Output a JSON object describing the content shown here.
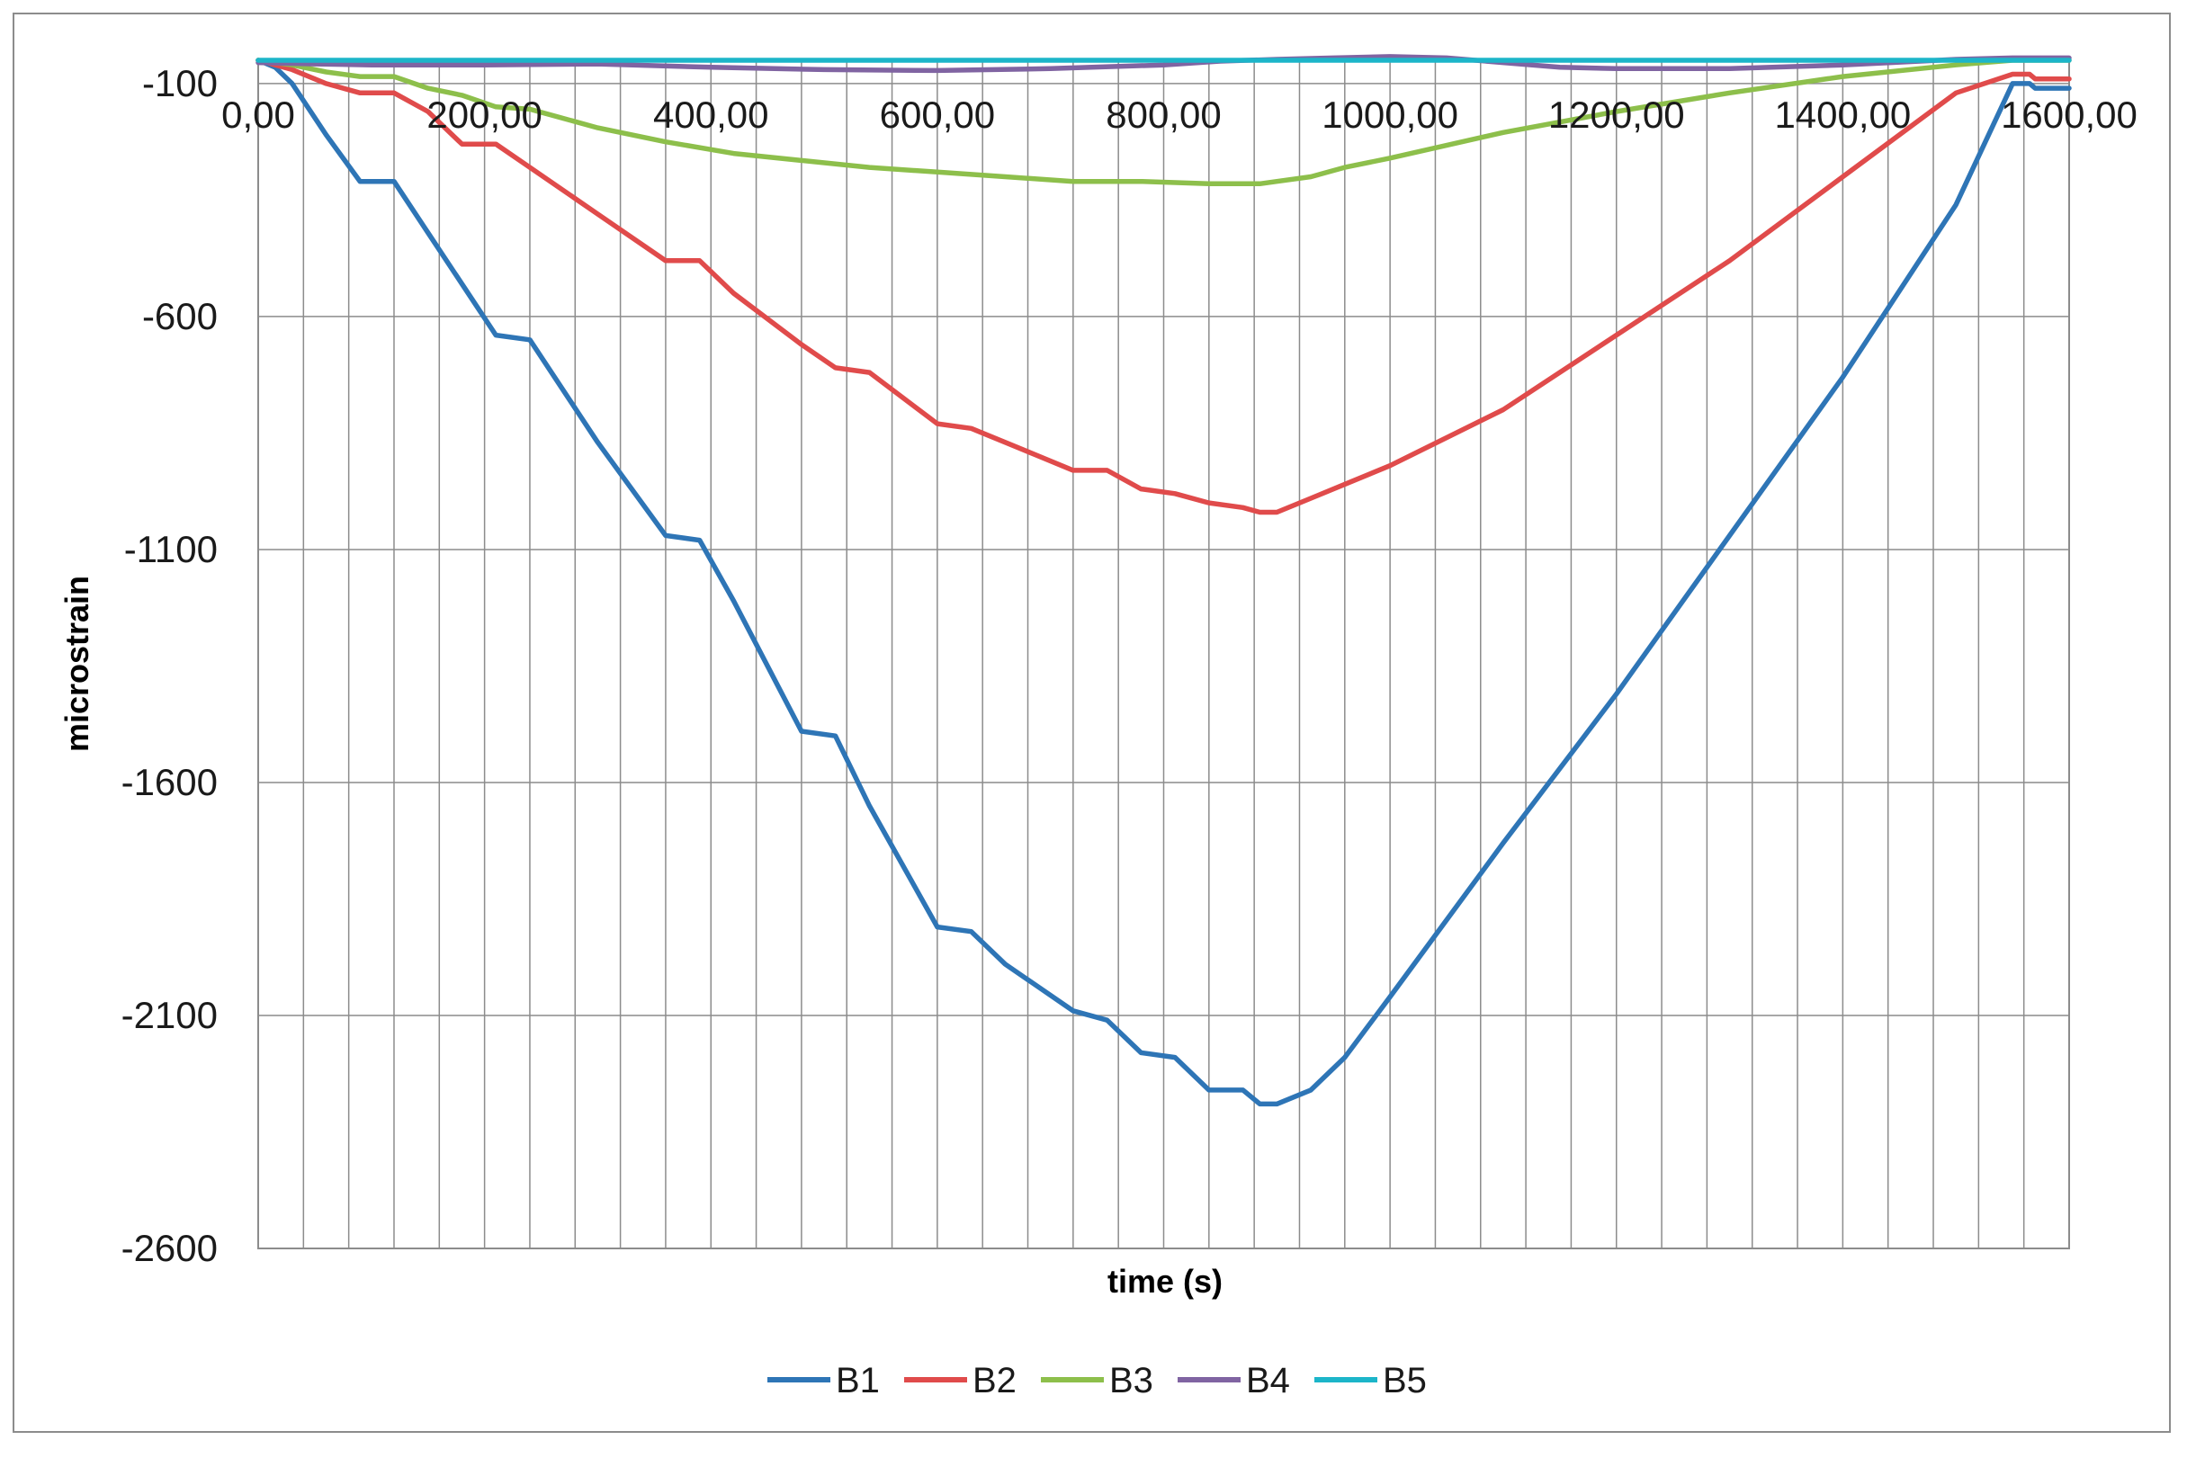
{
  "chart_data": {
    "type": "line",
    "title": "",
    "xlabel": "time (s)",
    "ylabel": "microstrain",
    "xlim": [
      0,
      1600
    ],
    "ylim": [
      -2600,
      -50
    ],
    "x_ticks": [
      0,
      200,
      400,
      600,
      800,
      1000,
      1200,
      1400,
      1600
    ],
    "x_tick_labels": [
      "0,00",
      "200,00",
      "400,00",
      "600,00",
      "800,00",
      "1000,00",
      "1200,00",
      "1400,00",
      "1600,00"
    ],
    "y_ticks": [
      -100,
      -600,
      -1100,
      -1600,
      -2100,
      -2600
    ],
    "y_tick_labels": [
      "-100",
      "-600",
      "-1100",
      "-1600",
      "-2100",
      "-2600"
    ],
    "minor_x_grid_step": 40,
    "grid": true,
    "legend_position": "bottom",
    "series": [
      {
        "name": "B1",
        "color": "#2e75b6",
        "x": [
          0,
          15,
          30,
          60,
          90,
          120,
          150,
          180,
          210,
          240,
          300,
          360,
          390,
          420,
          480,
          510,
          540,
          600,
          630,
          660,
          720,
          750,
          780,
          810,
          840,
          870,
          885,
          900,
          930,
          960,
          1000,
          1100,
          1200,
          1300,
          1400,
          1500,
          1550,
          1565,
          1570,
          1600
        ],
        "y": [
          -50,
          -65,
          -100,
          -210,
          -310,
          -310,
          -420,
          -530,
          -640,
          -650,
          -870,
          -1070,
          -1080,
          -1210,
          -1490,
          -1500,
          -1650,
          -1910,
          -1920,
          -1990,
          -2090,
          -2110,
          -2180,
          -2190,
          -2260,
          -2260,
          -2290,
          -2290,
          -2260,
          -2190,
          -2060,
          -1730,
          -1410,
          -1070,
          -730,
          -360,
          -100,
          -100,
          -110,
          -110
        ]
      },
      {
        "name": "B2",
        "color": "#e04b4b",
        "x": [
          0,
          30,
          60,
          90,
          120,
          150,
          180,
          210,
          240,
          300,
          360,
          390,
          420,
          480,
          510,
          540,
          600,
          630,
          660,
          720,
          750,
          780,
          810,
          840,
          870,
          885,
          900,
          930,
          960,
          1000,
          1100,
          1200,
          1300,
          1400,
          1500,
          1550,
          1565,
          1570,
          1600
        ],
        "y": [
          -50,
          -70,
          -100,
          -120,
          -120,
          -160,
          -230,
          -230,
          -280,
          -380,
          -480,
          -480,
          -550,
          -660,
          -710,
          -720,
          -830,
          -840,
          -870,
          -930,
          -930,
          -970,
          -980,
          -1000,
          -1010,
          -1020,
          -1020,
          -990,
          -960,
          -920,
          -800,
          -640,
          -480,
          -300,
          -120,
          -80,
          -80,
          -90,
          -90
        ]
      },
      {
        "name": "B3",
        "color": "#8dbf4b",
        "x": [
          0,
          30,
          60,
          90,
          120,
          150,
          180,
          210,
          240,
          300,
          360,
          420,
          480,
          540,
          600,
          660,
          720,
          780,
          840,
          870,
          885,
          900,
          930,
          960,
          1000,
          1100,
          1200,
          1300,
          1400,
          1500,
          1550,
          1570,
          1600
        ],
        "y": [
          -50,
          -60,
          -75,
          -85,
          -85,
          -110,
          -125,
          -150,
          -155,
          -195,
          -225,
          -250,
          -265,
          -280,
          -290,
          -300,
          -310,
          -310,
          -315,
          -315,
          -315,
          -310,
          -300,
          -280,
          -260,
          -205,
          -160,
          -120,
          -85,
          -60,
          -50,
          -50,
          -50
        ]
      },
      {
        "name": "B4",
        "color": "#8064a2",
        "x": [
          0,
          50,
          100,
          200,
          300,
          400,
          500,
          600,
          700,
          800,
          850,
          900,
          950,
          1000,
          1050,
          1100,
          1150,
          1200,
          1300,
          1400,
          1500,
          1550,
          1600
        ],
        "y": [
          -55,
          -58,
          -60,
          -60,
          -58,
          -65,
          -70,
          -72,
          -68,
          -60,
          -52,
          -48,
          -45,
          -42,
          -45,
          -55,
          -65,
          -68,
          -68,
          -60,
          -48,
          -45,
          -45
        ]
      },
      {
        "name": "B5",
        "color": "#1cb5c9",
        "x": [
          0,
          400,
          800,
          1200,
          1600
        ],
        "y": [
          -50,
          -50,
          -50,
          -50,
          -50
        ]
      }
    ]
  }
}
